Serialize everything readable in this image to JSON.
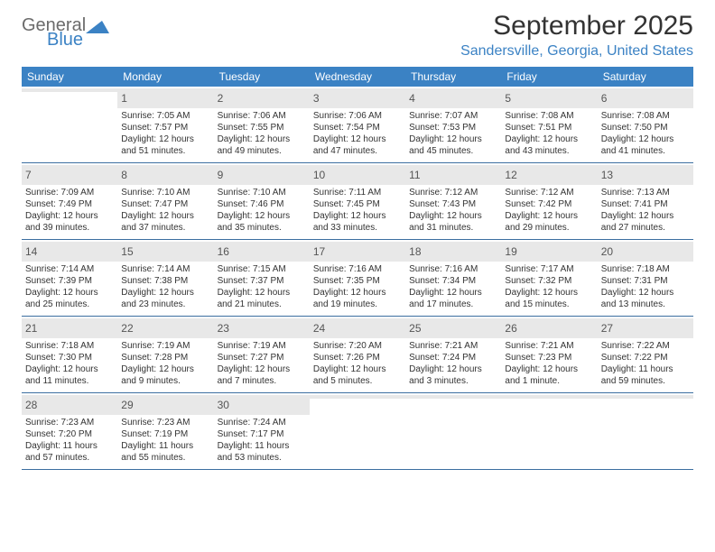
{
  "logo": {
    "top": "General",
    "bottom": "Blue"
  },
  "title": "September 2025",
  "location": "Sandersville, Georgia, United States",
  "colors": {
    "header_bg": "#3b82c4",
    "header_text": "#ffffff",
    "daynum_bg": "#e8e8e8",
    "border": "#3b6ea0",
    "accent": "#3b82c4",
    "text": "#333333"
  },
  "day_names": [
    "Sunday",
    "Monday",
    "Tuesday",
    "Wednesday",
    "Thursday",
    "Friday",
    "Saturday"
  ],
  "weeks": [
    [
      {
        "day": "",
        "lines": []
      },
      {
        "day": "1",
        "lines": [
          "Sunrise: 7:05 AM",
          "Sunset: 7:57 PM",
          "Daylight: 12 hours and 51 minutes."
        ]
      },
      {
        "day": "2",
        "lines": [
          "Sunrise: 7:06 AM",
          "Sunset: 7:55 PM",
          "Daylight: 12 hours and 49 minutes."
        ]
      },
      {
        "day": "3",
        "lines": [
          "Sunrise: 7:06 AM",
          "Sunset: 7:54 PM",
          "Daylight: 12 hours and 47 minutes."
        ]
      },
      {
        "day": "4",
        "lines": [
          "Sunrise: 7:07 AM",
          "Sunset: 7:53 PM",
          "Daylight: 12 hours and 45 minutes."
        ]
      },
      {
        "day": "5",
        "lines": [
          "Sunrise: 7:08 AM",
          "Sunset: 7:51 PM",
          "Daylight: 12 hours and 43 minutes."
        ]
      },
      {
        "day": "6",
        "lines": [
          "Sunrise: 7:08 AM",
          "Sunset: 7:50 PM",
          "Daylight: 12 hours and 41 minutes."
        ]
      }
    ],
    [
      {
        "day": "7",
        "lines": [
          "Sunrise: 7:09 AM",
          "Sunset: 7:49 PM",
          "Daylight: 12 hours and 39 minutes."
        ]
      },
      {
        "day": "8",
        "lines": [
          "Sunrise: 7:10 AM",
          "Sunset: 7:47 PM",
          "Daylight: 12 hours and 37 minutes."
        ]
      },
      {
        "day": "9",
        "lines": [
          "Sunrise: 7:10 AM",
          "Sunset: 7:46 PM",
          "Daylight: 12 hours and 35 minutes."
        ]
      },
      {
        "day": "10",
        "lines": [
          "Sunrise: 7:11 AM",
          "Sunset: 7:45 PM",
          "Daylight: 12 hours and 33 minutes."
        ]
      },
      {
        "day": "11",
        "lines": [
          "Sunrise: 7:12 AM",
          "Sunset: 7:43 PM",
          "Daylight: 12 hours and 31 minutes."
        ]
      },
      {
        "day": "12",
        "lines": [
          "Sunrise: 7:12 AM",
          "Sunset: 7:42 PM",
          "Daylight: 12 hours and 29 minutes."
        ]
      },
      {
        "day": "13",
        "lines": [
          "Sunrise: 7:13 AM",
          "Sunset: 7:41 PM",
          "Daylight: 12 hours and 27 minutes."
        ]
      }
    ],
    [
      {
        "day": "14",
        "lines": [
          "Sunrise: 7:14 AM",
          "Sunset: 7:39 PM",
          "Daylight: 12 hours and 25 minutes."
        ]
      },
      {
        "day": "15",
        "lines": [
          "Sunrise: 7:14 AM",
          "Sunset: 7:38 PM",
          "Daylight: 12 hours and 23 minutes."
        ]
      },
      {
        "day": "16",
        "lines": [
          "Sunrise: 7:15 AM",
          "Sunset: 7:37 PM",
          "Daylight: 12 hours and 21 minutes."
        ]
      },
      {
        "day": "17",
        "lines": [
          "Sunrise: 7:16 AM",
          "Sunset: 7:35 PM",
          "Daylight: 12 hours and 19 minutes."
        ]
      },
      {
        "day": "18",
        "lines": [
          "Sunrise: 7:16 AM",
          "Sunset: 7:34 PM",
          "Daylight: 12 hours and 17 minutes."
        ]
      },
      {
        "day": "19",
        "lines": [
          "Sunrise: 7:17 AM",
          "Sunset: 7:32 PM",
          "Daylight: 12 hours and 15 minutes."
        ]
      },
      {
        "day": "20",
        "lines": [
          "Sunrise: 7:18 AM",
          "Sunset: 7:31 PM",
          "Daylight: 12 hours and 13 minutes."
        ]
      }
    ],
    [
      {
        "day": "21",
        "lines": [
          "Sunrise: 7:18 AM",
          "Sunset: 7:30 PM",
          "Daylight: 12 hours and 11 minutes."
        ]
      },
      {
        "day": "22",
        "lines": [
          "Sunrise: 7:19 AM",
          "Sunset: 7:28 PM",
          "Daylight: 12 hours and 9 minutes."
        ]
      },
      {
        "day": "23",
        "lines": [
          "Sunrise: 7:19 AM",
          "Sunset: 7:27 PM",
          "Daylight: 12 hours and 7 minutes."
        ]
      },
      {
        "day": "24",
        "lines": [
          "Sunrise: 7:20 AM",
          "Sunset: 7:26 PM",
          "Daylight: 12 hours and 5 minutes."
        ]
      },
      {
        "day": "25",
        "lines": [
          "Sunrise: 7:21 AM",
          "Sunset: 7:24 PM",
          "Daylight: 12 hours and 3 minutes."
        ]
      },
      {
        "day": "26",
        "lines": [
          "Sunrise: 7:21 AM",
          "Sunset: 7:23 PM",
          "Daylight: 12 hours and 1 minute."
        ]
      },
      {
        "day": "27",
        "lines": [
          "Sunrise: 7:22 AM",
          "Sunset: 7:22 PM",
          "Daylight: 11 hours and 59 minutes."
        ]
      }
    ],
    [
      {
        "day": "28",
        "lines": [
          "Sunrise: 7:23 AM",
          "Sunset: 7:20 PM",
          "Daylight: 11 hours and 57 minutes."
        ]
      },
      {
        "day": "29",
        "lines": [
          "Sunrise: 7:23 AM",
          "Sunset: 7:19 PM",
          "Daylight: 11 hours and 55 minutes."
        ]
      },
      {
        "day": "30",
        "lines": [
          "Sunrise: 7:24 AM",
          "Sunset: 7:17 PM",
          "Daylight: 11 hours and 53 minutes."
        ]
      },
      {
        "day": "",
        "lines": []
      },
      {
        "day": "",
        "lines": []
      },
      {
        "day": "",
        "lines": []
      },
      {
        "day": "",
        "lines": []
      }
    ]
  ]
}
